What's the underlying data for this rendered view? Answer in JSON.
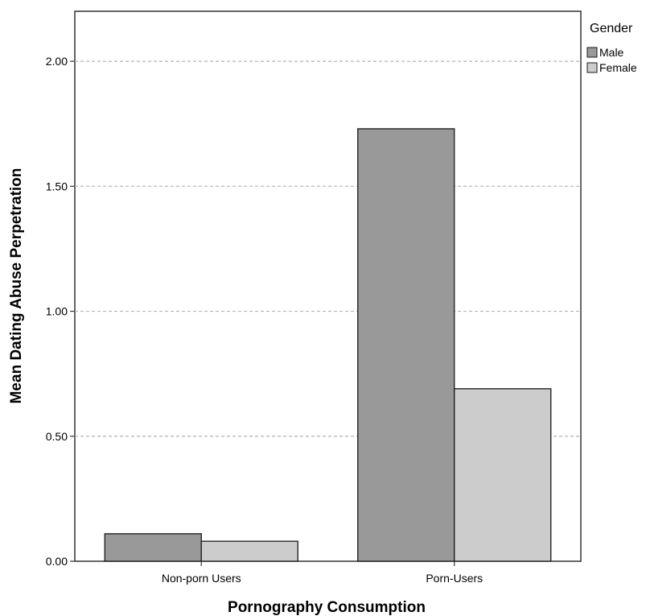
{
  "chart_data": {
    "type": "bar",
    "categories": [
      "Non-porn Users",
      "Porn-Users"
    ],
    "series": [
      {
        "name": "Male",
        "values": [
          0.11,
          1.73
        ],
        "color": "#999999"
      },
      {
        "name": "Female",
        "values": [
          0.08,
          0.69
        ],
        "color": "#cccccc"
      }
    ],
    "xlabel": "Pornography Consumption",
    "ylabel": "Mean Dating Abuse Perpetration",
    "ylim": [
      0,
      2.2
    ],
    "yticks": [
      0.0,
      0.5,
      1.0,
      1.5,
      2.0
    ],
    "ytick_labels": [
      "0.00",
      "0.50",
      "1.00",
      "1.50",
      "2.00"
    ],
    "grid": true,
    "legend": {
      "title": "Gender",
      "position": "top-right"
    }
  }
}
